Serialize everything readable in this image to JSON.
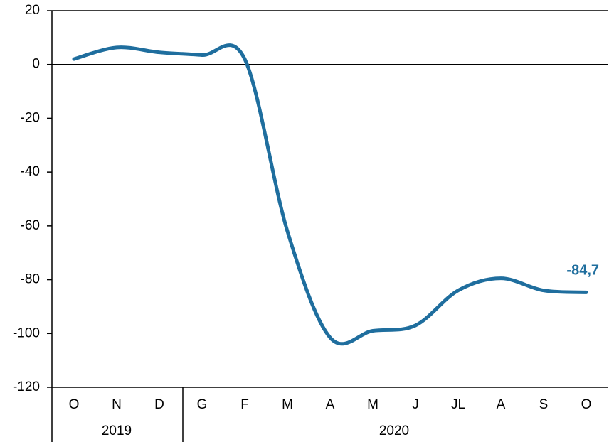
{
  "chart_data": {
    "type": "line",
    "categories": [
      "O",
      "N",
      "D",
      "G",
      "F",
      "M",
      "A",
      "M",
      "J",
      "JL",
      "A",
      "S",
      "O"
    ],
    "groups": [
      {
        "label": "2019",
        "start": 0,
        "end": 2
      },
      {
        "label": "2020",
        "start": 3,
        "end": 12
      }
    ],
    "series": [
      {
        "color": "#1f6e9e",
        "values": [
          2,
          6.3,
          4.5,
          3.5,
          2,
          -62,
          -101.5,
          -99,
          -97,
          -84,
          -79.5,
          -84,
          -84.7
        ],
        "value_labels": [
          null,
          null,
          null,
          null,
          null,
          null,
          null,
          null,
          null,
          null,
          null,
          null,
          "-84,7"
        ]
      }
    ],
    "ylim": [
      -120,
      20
    ],
    "yticks": [
      -120,
      -100,
      -80,
      -60,
      -40,
      -20,
      0,
      20
    ]
  }
}
